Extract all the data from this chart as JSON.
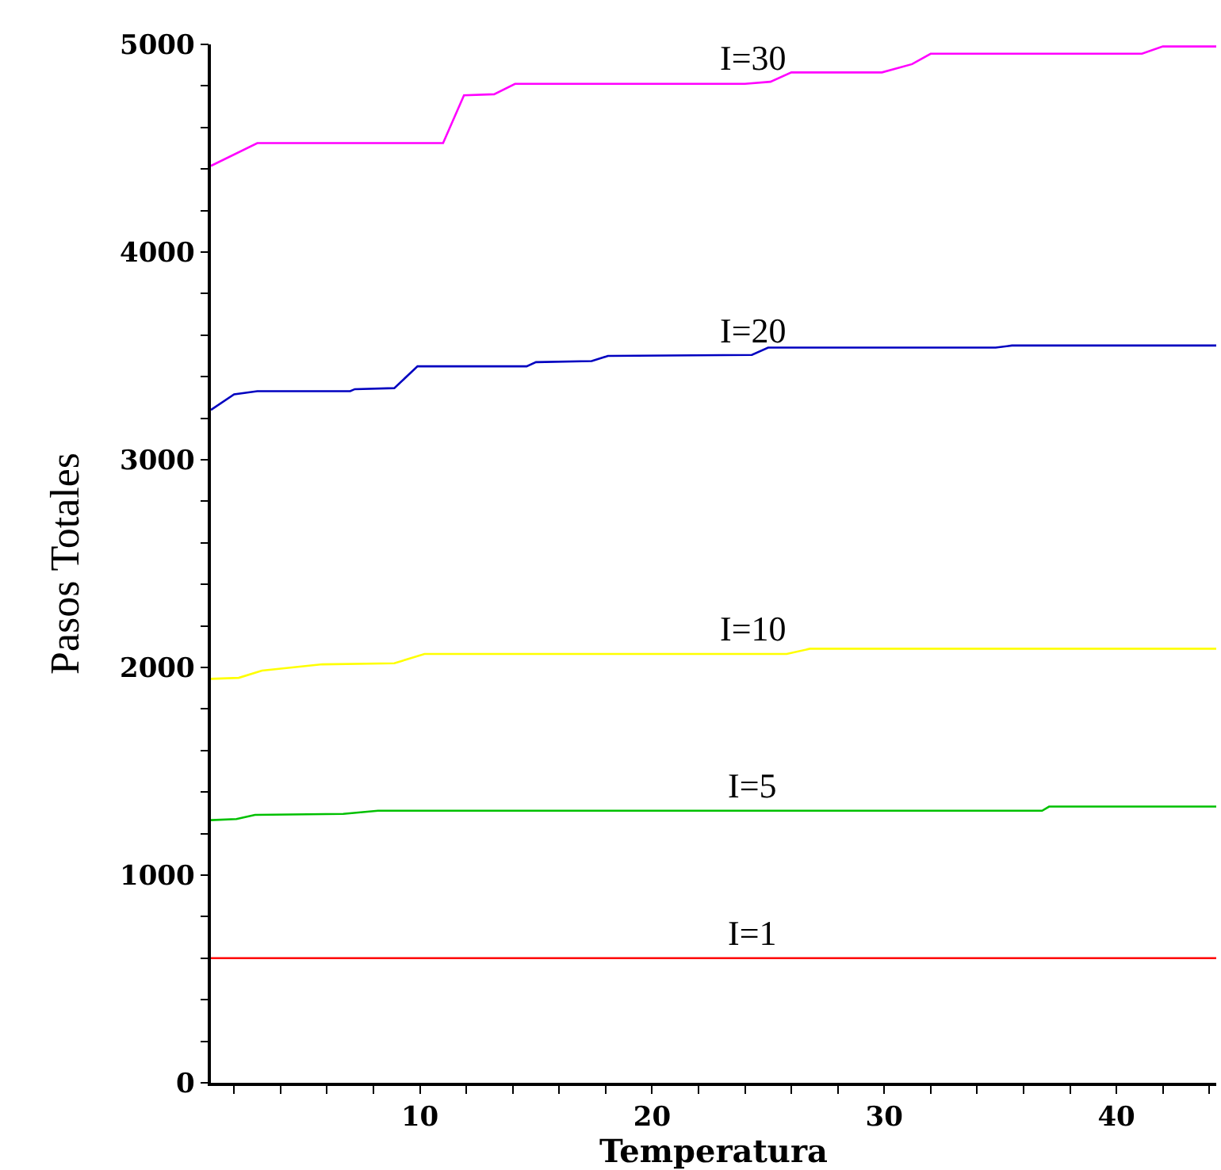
{
  "chart_data": {
    "type": "line",
    "xlabel": "Temperatura",
    "ylabel": "Pasos Totales",
    "xlim": [
      1,
      44.3
    ],
    "ylim": [
      0,
      5000
    ],
    "xticks": [
      {
        "value": 2,
        "label": null
      },
      {
        "value": 4,
        "label": null
      },
      {
        "value": 6,
        "label": null
      },
      {
        "value": 8,
        "label": null
      },
      10,
      {
        "value": 12,
        "label": null
      },
      {
        "value": 14,
        "label": null
      },
      {
        "value": 16,
        "label": null
      },
      {
        "value": 18,
        "label": null
      },
      20,
      {
        "value": 22,
        "label": null
      },
      {
        "value": 24,
        "label": null
      },
      {
        "value": 26,
        "label": null
      },
      {
        "value": 28,
        "label": null
      },
      30,
      {
        "value": 32,
        "label": null
      },
      {
        "value": 34,
        "label": null
      },
      {
        "value": 36,
        "label": null
      },
      {
        "value": 38,
        "label": null
      },
      40,
      {
        "value": 42,
        "label": null
      },
      {
        "value": 44,
        "label": null
      }
    ],
    "yticks": [
      0,
      {
        "value": 200,
        "label": null
      },
      {
        "value": 400,
        "label": null
      },
      {
        "value": 600,
        "label": null
      },
      {
        "value": 800,
        "label": null
      },
      1000,
      {
        "value": 1200,
        "label": null
      },
      {
        "value": 1400,
        "label": null
      },
      {
        "value": 1600,
        "label": null
      },
      {
        "value": 1800,
        "label": null
      },
      2000,
      {
        "value": 2200,
        "label": null
      },
      {
        "value": 2400,
        "label": null
      },
      {
        "value": 2600,
        "label": null
      },
      {
        "value": 2800,
        "label": null
      },
      3000,
      {
        "value": 3200,
        "label": null
      },
      {
        "value": 3400,
        "label": null
      },
      {
        "value": 3600,
        "label": null
      },
      {
        "value": 3800,
        "label": null
      },
      4000,
      {
        "value": 4200,
        "label": null
      },
      {
        "value": 4400,
        "label": null
      },
      {
        "value": 4600,
        "label": null
      },
      {
        "value": 4800,
        "label": null
      },
      5000
    ],
    "grid": false,
    "legend": false,
    "marker": "none",
    "line_style": "solid",
    "series": [
      {
        "name": "I=30",
        "color": "#ff00ff",
        "x": [
          1,
          3,
          11,
          11.9,
          13.2,
          14.1,
          24,
          25.1,
          26,
          29.9,
          31.2,
          32,
          41.1,
          42,
          44.3
        ],
        "values": [
          4415,
          4525,
          4525,
          4755,
          4760,
          4810,
          4810,
          4820,
          4865,
          4865,
          4905,
          4955,
          4955,
          4990,
          4990
        ]
      },
      {
        "name": "I=20",
        "color": "#0000c0",
        "x": [
          1,
          2,
          3,
          7,
          7.2,
          8.9,
          9.9,
          14.6,
          15,
          17.4,
          18.1,
          24.3,
          25,
          34.8,
          35.5,
          44.3
        ],
        "values": [
          3240,
          3315,
          3330,
          3330,
          3340,
          3345,
          3450,
          3450,
          3470,
          3475,
          3500,
          3505,
          3540,
          3540,
          3550,
          3550
        ]
      },
      {
        "name": "I=10",
        "color": "#ffff00",
        "x": [
          1,
          2.2,
          3.2,
          5.8,
          8.9,
          10.2,
          25.8,
          26.8,
          44.3
        ],
        "values": [
          1945,
          1950,
          1985,
          2015,
          2020,
          2065,
          2065,
          2090,
          2090
        ]
      },
      {
        "name": "I=5",
        "color": "#00c000",
        "x": [
          1,
          2.1,
          2.9,
          6.7,
          8.2,
          36.8,
          37.1,
          44.3
        ],
        "values": [
          1265,
          1270,
          1290,
          1295,
          1310,
          1310,
          1330,
          1330
        ]
      },
      {
        "name": "I=1",
        "color": "#ff0000",
        "x": [
          1,
          44.3
        ],
        "values": [
          600,
          600
        ]
      }
    ]
  }
}
